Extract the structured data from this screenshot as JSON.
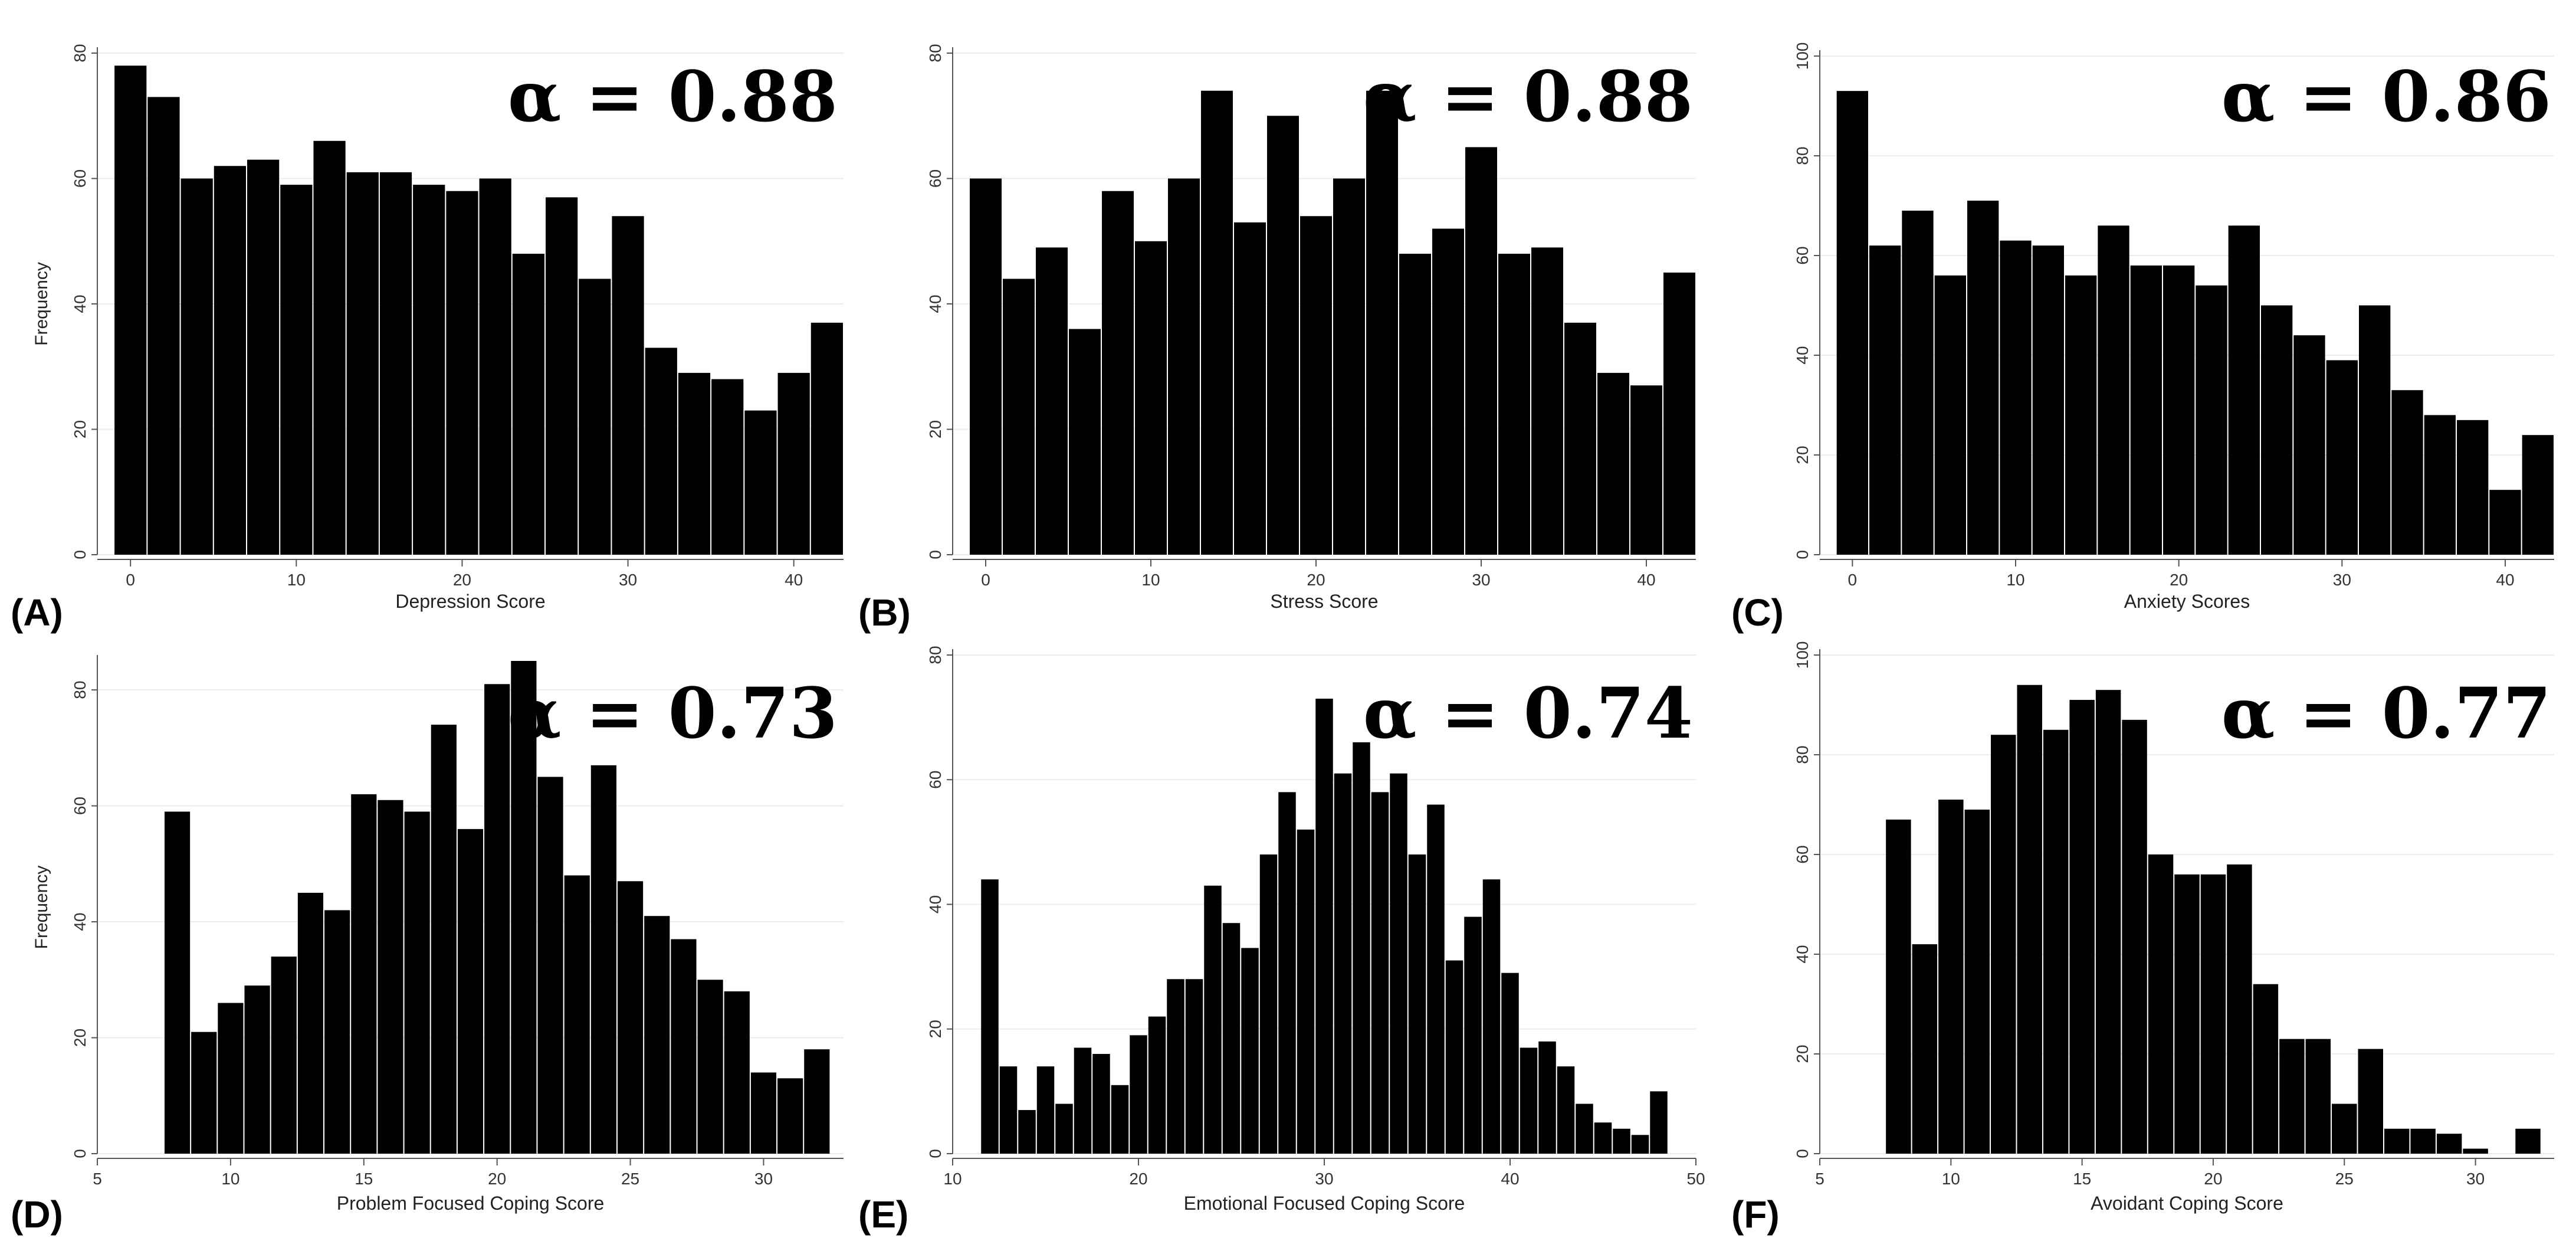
{
  "chart_data": [
    {
      "type": "bar",
      "panel_label": "(A)",
      "annotation": "α = 0.88",
      "xlabel": "Depression Score",
      "ylabel": "Frequency",
      "xlim": [
        -2,
        43
      ],
      "ylim": [
        0,
        80
      ],
      "xticks": [
        0,
        10,
        20,
        30,
        40
      ],
      "yticks": [
        0,
        20,
        40,
        60,
        80
      ],
      "bin_width": 2,
      "x": [
        0,
        2,
        4,
        6,
        8,
        10,
        12,
        14,
        16,
        18,
        20,
        22,
        24,
        26,
        28,
        30,
        32,
        34,
        36,
        38,
        40,
        42
      ],
      "values": [
        78,
        73,
        60,
        62,
        63,
        59,
        66,
        61,
        61,
        59,
        58,
        60,
        48,
        57,
        44,
        54,
        33,
        29,
        28,
        23,
        29,
        37
      ]
    },
    {
      "type": "bar",
      "panel_label": "(B)",
      "annotation": "α = 0.88",
      "xlabel": "Stress Score",
      "ylabel": "",
      "xlim": [
        -2,
        43
      ],
      "ylim": [
        0,
        80
      ],
      "xticks": [
        0,
        10,
        20,
        30,
        40
      ],
      "yticks": [
        0,
        20,
        40,
        60,
        80
      ],
      "bin_width": 2,
      "x": [
        0,
        2,
        4,
        6,
        8,
        10,
        12,
        14,
        16,
        18,
        20,
        22,
        24,
        26,
        28,
        30,
        32,
        34,
        36,
        38,
        40,
        42
      ],
      "values": [
        60,
        44,
        49,
        36,
        58,
        50,
        60,
        74,
        53,
        70,
        54,
        60,
        74,
        48,
        52,
        65,
        48,
        49,
        37,
        29,
        27,
        45
      ]
    },
    {
      "type": "bar",
      "panel_label": "(C)",
      "annotation": "α = 0.86",
      "xlabel": "Anxiety Scores",
      "ylabel": "",
      "xlim": [
        -2,
        43
      ],
      "ylim": [
        0,
        100
      ],
      "xticks": [
        0,
        10,
        20,
        30,
        40
      ],
      "yticks": [
        0,
        20,
        40,
        60,
        80,
        100
      ],
      "bin_width": 2,
      "x": [
        0,
        2,
        4,
        6,
        8,
        10,
        12,
        14,
        16,
        18,
        20,
        22,
        24,
        26,
        28,
        30,
        32,
        34,
        36,
        38,
        40,
        42
      ],
      "values": [
        93,
        62,
        69,
        56,
        71,
        63,
        62,
        56,
        66,
        58,
        58,
        54,
        66,
        50,
        44,
        39,
        50,
        33,
        28,
        27,
        13,
        24
      ]
    },
    {
      "type": "bar",
      "panel_label": "(D)",
      "annotation": "α = 0.73",
      "xlabel": "Problem Focused Coping Score",
      "ylabel": "Frequency",
      "xlim": [
        5,
        33
      ],
      "ylim": [
        0,
        85
      ],
      "xticks": [
        5,
        10,
        15,
        20,
        25,
        30
      ],
      "yticks": [
        0,
        20,
        40,
        60,
        80
      ],
      "bin_width": 1,
      "x": [
        8,
        9,
        10,
        11,
        12,
        13,
        14,
        15,
        16,
        17,
        18,
        19,
        20,
        21,
        22,
        23,
        24,
        25,
        26,
        27,
        28,
        29,
        30,
        31,
        32
      ],
      "values": [
        59,
        21,
        26,
        29,
        34,
        45,
        42,
        62,
        61,
        59,
        74,
        56,
        81,
        85,
        65,
        48,
        67,
        47,
        41,
        37,
        30,
        28,
        14,
        13,
        18
      ]
    },
    {
      "type": "bar",
      "panel_label": "(E)",
      "annotation": "α = 0.74",
      "xlabel": "Emotional Focused Coping Score",
      "ylabel": "",
      "xlim": [
        10,
        50
      ],
      "ylim": [
        0,
        80
      ],
      "xticks": [
        10,
        20,
        30,
        40,
        50
      ],
      "yticks": [
        0,
        20,
        40,
        60,
        80
      ],
      "bin_width": 1,
      "x": [
        12,
        13,
        14,
        15,
        16,
        17,
        18,
        19,
        20,
        21,
        22,
        23,
        24,
        25,
        26,
        27,
        28,
        29,
        30,
        31,
        32,
        33,
        34,
        35,
        36,
        37,
        38,
        39,
        40,
        41,
        42,
        43,
        44,
        45,
        46,
        47,
        48
      ],
      "values": [
        44,
        14,
        7,
        14,
        8,
        17,
        16,
        11,
        19,
        22,
        28,
        28,
        43,
        37,
        33,
        48,
        58,
        52,
        73,
        61,
        66,
        58,
        61,
        48,
        56,
        31,
        38,
        44,
        29,
        17,
        18,
        14,
        8,
        5,
        4,
        3,
        10
      ]
    },
    {
      "type": "bar",
      "panel_label": "(F)",
      "annotation": "α = 0.77",
      "xlabel": "Avoidant Coping Score",
      "ylabel": "",
      "xlim": [
        5,
        33
      ],
      "ylim": [
        0,
        100
      ],
      "xticks": [
        5,
        10,
        15,
        20,
        25,
        30
      ],
      "yticks": [
        0,
        20,
        40,
        60,
        80,
        100
      ],
      "bin_width": 1,
      "x": [
        8,
        9,
        10,
        11,
        12,
        13,
        14,
        15,
        16,
        17,
        18,
        19,
        20,
        21,
        22,
        23,
        24,
        25,
        26,
        27,
        28,
        29,
        30,
        31,
        32
      ],
      "values": [
        67,
        42,
        71,
        69,
        84,
        94,
        85,
        91,
        93,
        87,
        60,
        56,
        56,
        58,
        34,
        23,
        23,
        10,
        21,
        5,
        5,
        4,
        1,
        0,
        5
      ]
    }
  ]
}
